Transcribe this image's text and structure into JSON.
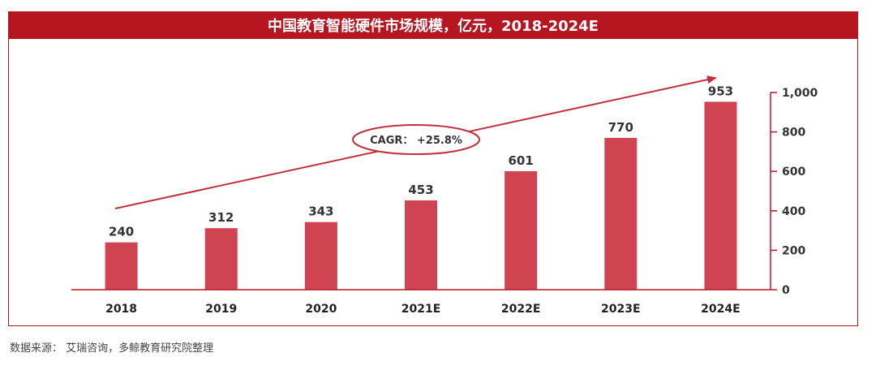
{
  "title": "中国教育智能硬件市场规模，亿元，2018-2024E",
  "source": "数据来源： 艾瑞咨询，多鲸教育研究院整理",
  "colors": {
    "accent": "#b5161f",
    "bar": "#d04452"
  },
  "chart_data": {
    "type": "bar",
    "categories": [
      "2018",
      "2019",
      "2020",
      "2021E",
      "2022E",
      "2023E",
      "2024E"
    ],
    "values": [
      240,
      312,
      343,
      453,
      601,
      770,
      953
    ],
    "data_labels": [
      "240",
      "312",
      "343",
      "453",
      "601",
      "770",
      "953"
    ],
    "ylim": [
      0,
      1000
    ],
    "yticks": [
      0,
      200,
      400,
      600,
      800,
      1000
    ],
    "ytick_labels": [
      "0",
      "200",
      "400",
      "600",
      "800",
      "1,000"
    ],
    "y_axis_position": "right",
    "grid": false,
    "annotation": {
      "label": "CAGR： +25.8%"
    }
  }
}
